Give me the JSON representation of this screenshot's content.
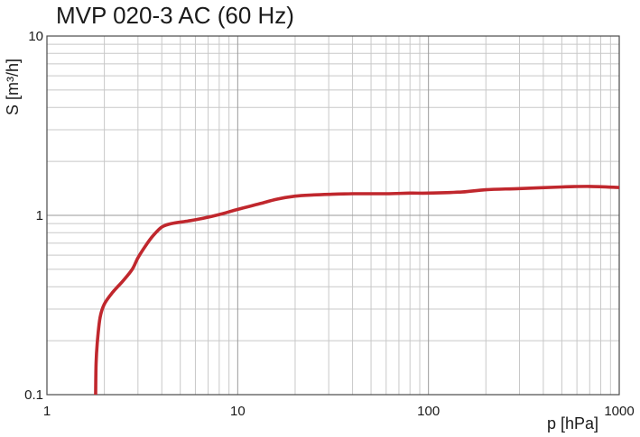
{
  "chart_data": {
    "type": "line",
    "title": "MVP 020-3 AC (60 Hz)",
    "xlabel": "p [hPa]",
    "ylabel": "S  [m³/h]",
    "x_scale": "log",
    "y_scale": "log",
    "xlim": [
      1,
      1000
    ],
    "ylim": [
      0.1,
      10
    ],
    "x_tick_labels": [
      "1",
      "10",
      "100",
      "1000"
    ],
    "y_tick_labels": [
      "0.1",
      "1",
      "10"
    ],
    "grid": true,
    "color": "#c0272d",
    "series": [
      {
        "x": [
          1.8,
          1.81,
          1.84,
          1.9,
          2.0,
          2.2,
          2.5,
          2.8,
          3.0,
          3.3,
          3.6,
          4.0,
          4.5,
          5.5,
          6.5,
          8,
          10,
          13,
          16,
          20,
          25,
          30,
          40,
          60,
          80,
          100,
          150,
          200,
          300,
          500,
          700,
          1000
        ],
        "y": [
          0.1,
          0.15,
          0.2,
          0.27,
          0.32,
          0.37,
          0.43,
          0.5,
          0.58,
          0.68,
          0.77,
          0.86,
          0.9,
          0.93,
          0.96,
          1.01,
          1.08,
          1.16,
          1.23,
          1.28,
          1.3,
          1.31,
          1.32,
          1.32,
          1.33,
          1.33,
          1.35,
          1.39,
          1.41,
          1.44,
          1.45,
          1.43
        ]
      }
    ]
  }
}
